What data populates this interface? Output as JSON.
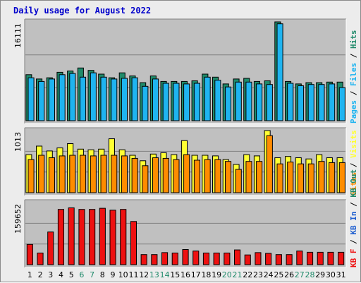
{
  "title": "Daily usage for August 2022",
  "colors": {
    "hits": "#1f8a6a",
    "files": "#1fb4f0",
    "pages": "#1fb4f0",
    "visits": "#ffff33",
    "sites": "#ff8c00",
    "kbin": "#1f5fd0",
    "kbout": "#1f8a6a",
    "kbf": "#ee1111",
    "weekday_label": "#000000",
    "weekend_label": "#1f8a6a"
  },
  "chart_data": [
    {
      "type": "bar",
      "panel": "hits-files-pages",
      "ylabel_parts": [
        {
          "text": "Pages",
          "color_key": "pages"
        },
        {
          "text": " / ",
          "color_key": "weekday_label"
        },
        {
          "text": "Files",
          "color_key": "files"
        },
        {
          "text": " / ",
          "color_key": "weekday_label"
        },
        {
          "text": "Hits",
          "color_key": "hits"
        }
      ],
      "ymax_label": "16111",
      "ylim": [
        0,
        16111
      ],
      "grid": true,
      "categories": [
        "1",
        "2",
        "3",
        "4",
        "5",
        "6",
        "7",
        "8",
        "9",
        "10",
        "11",
        "12",
        "13",
        "14",
        "15",
        "16",
        "17",
        "18",
        "19",
        "20",
        "21",
        "22",
        "23",
        "24",
        "25",
        "26",
        "27",
        "28",
        "29",
        "30",
        "31"
      ],
      "series": [
        {
          "key": "hits",
          "values": [
            7500,
            6800,
            7000,
            7900,
            8100,
            8600,
            8200,
            7600,
            7000,
            7800,
            7300,
            6200,
            7300,
            6400,
            6400,
            6400,
            6500,
            7600,
            7100,
            6000,
            6800,
            6900,
            6400,
            6500,
            16111,
            6400,
            6000,
            6200,
            6200,
            6300,
            6300
          ]
        },
        {
          "key": "files",
          "values": [
            7000,
            6400,
            6800,
            7500,
            7700,
            7100,
            7800,
            7100,
            6800,
            6900,
            7000,
            5600,
            6800,
            6100,
            6100,
            6000,
            6100,
            7100,
            6600,
            5500,
            6300,
            6300,
            6000,
            5900,
            15800,
            6100,
            5700,
            5900,
            5900,
            6000,
            5400
          ]
        }
      ]
    },
    {
      "type": "bar",
      "panel": "visits-sites",
      "ylabel_parts": [
        {
          "text": "Sites",
          "color_key": "sites"
        },
        {
          "text": " / ",
          "color_key": "weekday_label"
        },
        {
          "text": "Visits",
          "color_key": "visits"
        }
      ],
      "ymax_label": "1013",
      "ylim": [
        0,
        1013
      ],
      "grid": true,
      "categories": [
        "1",
        "2",
        "3",
        "4",
        "5",
        "6",
        "7",
        "8",
        "9",
        "10",
        "11",
        "12",
        "13",
        "14",
        "15",
        "16",
        "17",
        "18",
        "19",
        "20",
        "21",
        "22",
        "23",
        "24",
        "25",
        "26",
        "27",
        "28",
        "29",
        "30",
        "31"
      ],
      "series": [
        {
          "key": "visits",
          "values": [
            620,
            760,
            680,
            730,
            800,
            710,
            700,
            710,
            880,
            700,
            610,
            520,
            630,
            650,
            620,
            850,
            610,
            610,
            600,
            540,
            460,
            620,
            600,
            1013,
            570,
            590,
            570,
            550,
            620,
            570,
            570
          ]
        },
        {
          "key": "sites",
          "values": [
            540,
            610,
            570,
            600,
            610,
            610,
            600,
            610,
            610,
            600,
            560,
            440,
            570,
            560,
            540,
            620,
            530,
            540,
            540,
            510,
            380,
            510,
            510,
            930,
            470,
            500,
            470,
            470,
            510,
            490,
            490
          ]
        }
      ]
    },
    {
      "type": "bar",
      "panel": "kbf-kbin-kbout",
      "ylabel_parts": [
        {
          "text": "KB F",
          "color_key": "kbf"
        },
        {
          "text": " / ",
          "color_key": "weekday_label"
        },
        {
          "text": "KB In",
          "color_key": "kbin"
        },
        {
          "text": " / ",
          "color_key": "weekday_label"
        },
        {
          "text": "KB Out",
          "color_key": "kbout"
        }
      ],
      "ymax_label": "159652",
      "ylim": [
        0,
        159652
      ],
      "grid": true,
      "categories": [
        "1",
        "2",
        "3",
        "4",
        "5",
        "6",
        "7",
        "8",
        "9",
        "10",
        "11",
        "12",
        "13",
        "14",
        "15",
        "16",
        "17",
        "18",
        "19",
        "20",
        "21",
        "22",
        "23",
        "24",
        "25",
        "26",
        "27",
        "28",
        "29",
        "30",
        "31"
      ],
      "series": [
        {
          "key": "kbf",
          "values": [
            52000,
            30000,
            84000,
            142000,
            146000,
            142000,
            142000,
            145000,
            140000,
            142000,
            111000,
            26000,
            26000,
            31000,
            30000,
            39000,
            35000,
            30000,
            30000,
            30000,
            38000,
            25000,
            31000,
            29000,
            26000,
            26000,
            35000,
            32000,
            32000,
            32000,
            32000
          ]
        }
      ]
    }
  ],
  "day_labels": [
    "1",
    "2",
    "3",
    "4",
    "5",
    "6",
    "7",
    "8",
    "9",
    "10",
    "11",
    "12",
    "13",
    "14",
    "15",
    "16",
    "17",
    "18",
    "19",
    "20",
    "21",
    "22",
    "23",
    "24",
    "25",
    "26",
    "27",
    "28",
    "29",
    "30",
    "31"
  ],
  "weekend_days": [
    "6",
    "7",
    "13",
    "14",
    "20",
    "21",
    "27",
    "28"
  ]
}
